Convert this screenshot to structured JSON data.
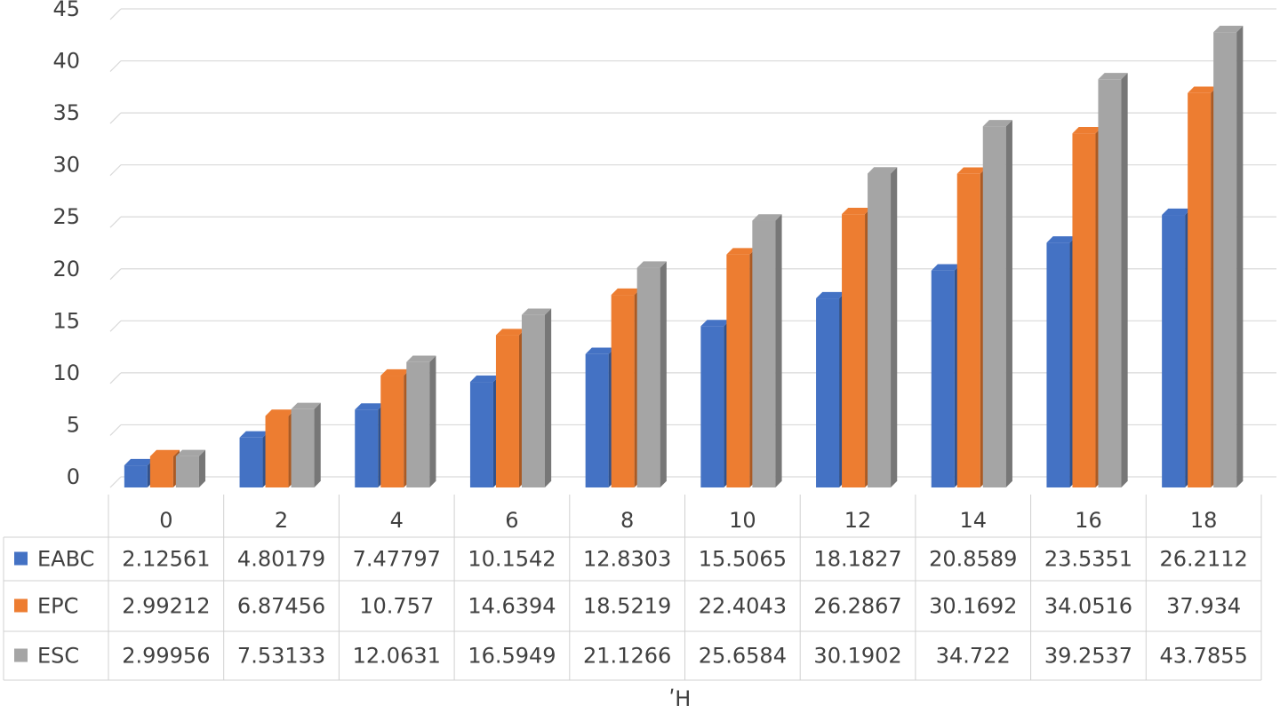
{
  "chart_data": {
    "type": "bar",
    "style": "3d-clustered-column-with-data-table",
    "xlabel": "ʹH",
    "categories": [
      "0",
      "2",
      "4",
      "6",
      "8",
      "10",
      "12",
      "14",
      "16",
      "18"
    ],
    "ylim": [
      0,
      45
    ],
    "yticks": [
      "0",
      "5",
      "10",
      "15",
      "20",
      "25",
      "30",
      "35",
      "40",
      "45"
    ],
    "grid": true,
    "legend": "in-data-table",
    "series": [
      {
        "name": "EABC",
        "color": "#4472C4",
        "values": [
          2.12561,
          4.80179,
          7.47797,
          10.1542,
          12.8303,
          15.5065,
          18.1827,
          20.8589,
          23.5351,
          26.2112
        ],
        "labels": [
          "2.12561",
          "4.80179",
          "7.47797",
          "10.1542",
          "12.8303",
          "15.5065",
          "18.1827",
          "20.8589",
          "23.5351",
          "26.2112"
        ]
      },
      {
        "name": "EPC",
        "color": "#ED7D31",
        "values": [
          2.99212,
          6.87456,
          10.757,
          14.6394,
          18.5219,
          22.4043,
          26.2867,
          30.1692,
          34.0516,
          37.934
        ],
        "labels": [
          "2.99212",
          "6.87456",
          "10.757",
          "14.6394",
          "18.5219",
          "22.4043",
          "26.2867",
          "30.1692",
          "34.0516",
          "37.934"
        ]
      },
      {
        "name": "ESC",
        "color": "#A5A5A5",
        "values": [
          2.99956,
          7.53133,
          12.0631,
          16.5949,
          21.1266,
          25.6584,
          30.1902,
          34.722,
          39.2537,
          43.7855
        ],
        "labels": [
          "2.99956",
          "7.53133",
          "12.0631",
          "16.5949",
          "21.1266",
          "25.6584",
          "30.1902",
          "34.722",
          "39.2537",
          "43.7855"
        ]
      }
    ]
  }
}
